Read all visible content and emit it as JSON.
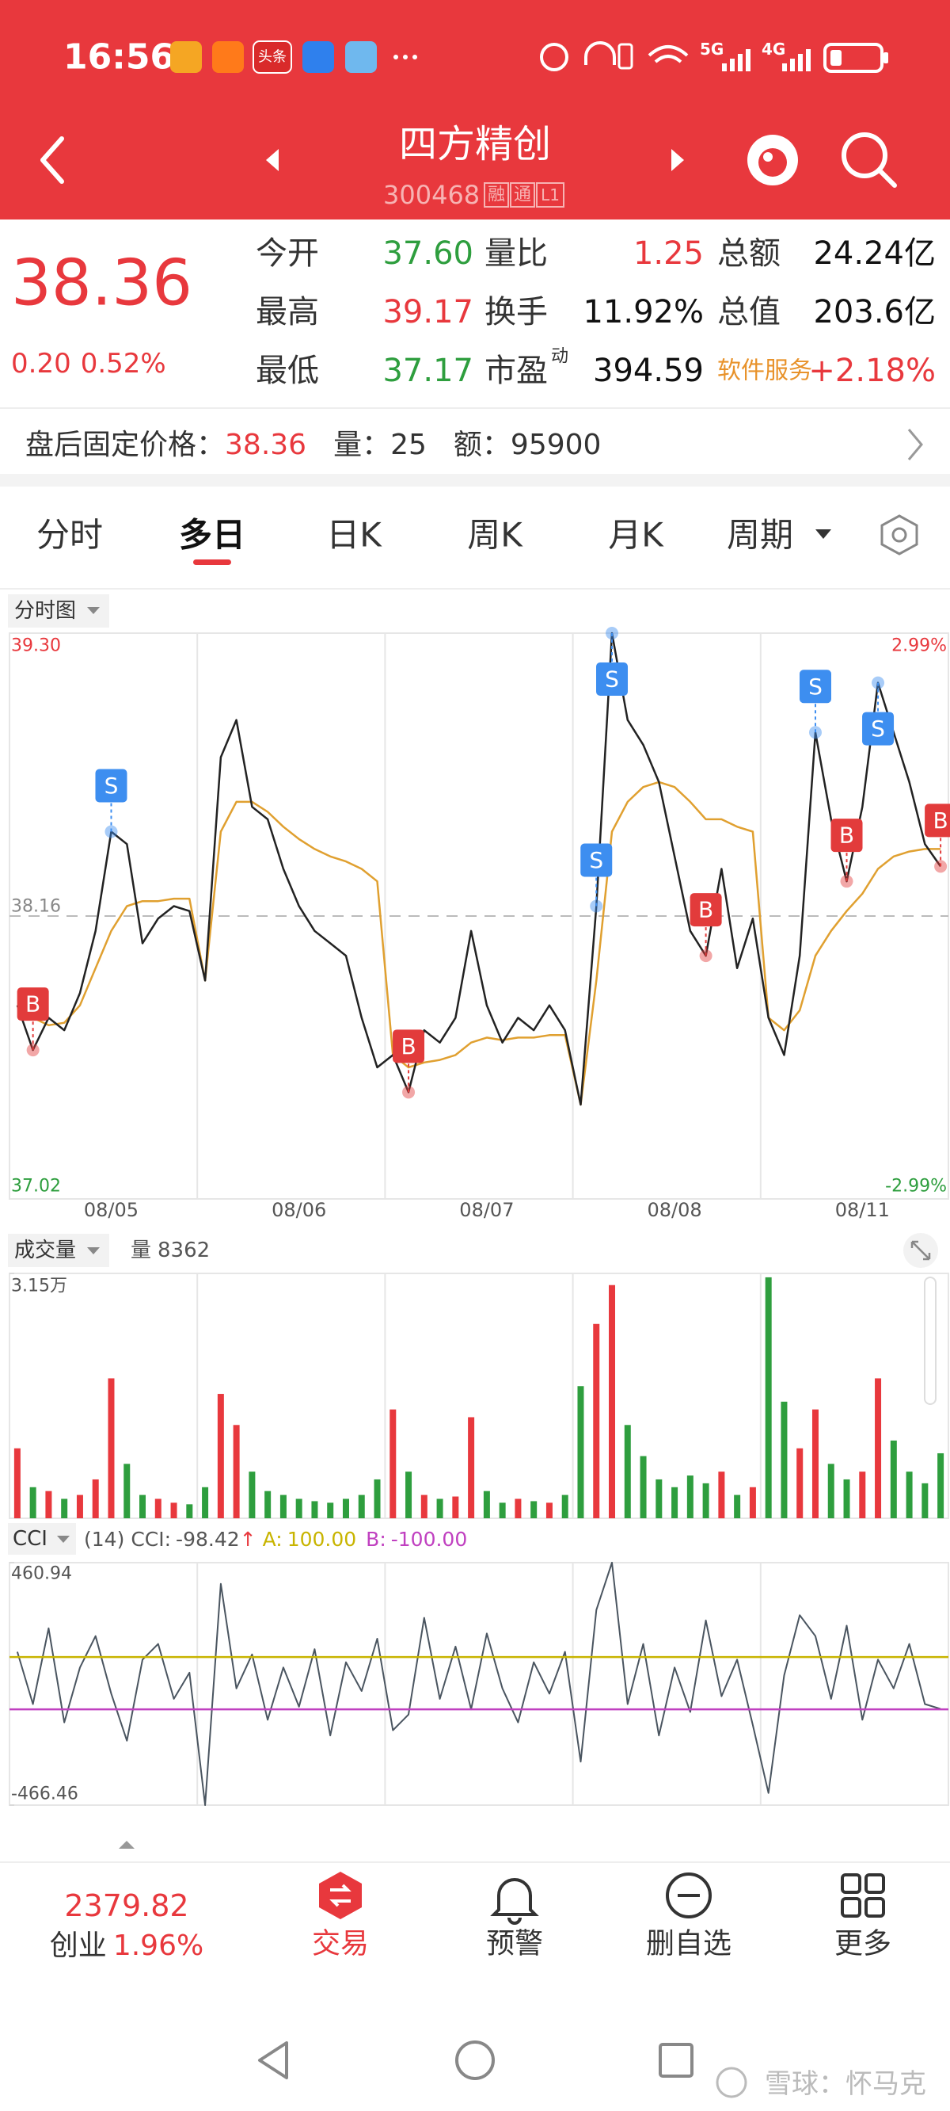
{
  "status_bar": {
    "time": "16:56",
    "app_label": "头条",
    "network": [
      "5G",
      "4G"
    ]
  },
  "header": {
    "title": "四方精创",
    "code": "300468",
    "tags": [
      "融",
      "通",
      "L1"
    ]
  },
  "quote": {
    "price": "38.36",
    "change": "0.20",
    "change_pct": "0.52%",
    "stats": [
      [
        {
          "label": "今开",
          "value": "37.60",
          "color": "#2e9e3e"
        },
        {
          "label": "量比",
          "value": "1.25",
          "color": "#e8383d"
        },
        {
          "label": "总额",
          "value": "24.24亿"
        }
      ],
      [
        {
          "label": "最高",
          "value": "39.17",
          "color": "#e8383d"
        },
        {
          "label": "换手",
          "value": "11.92%"
        },
        {
          "label": "总值",
          "value": "203.6亿"
        }
      ],
      [
        {
          "label": "最低",
          "value": "37.17",
          "color": "#2e9e3e"
        },
        {
          "label": "市盈",
          "sup": "动",
          "value": "394.59"
        },
        {
          "label": "软件服务",
          "label_color": "#e8922a",
          "value": "+2.18%",
          "color": "#e8383d"
        }
      ]
    ]
  },
  "after_hours": {
    "label": "盘后固定价格：",
    "price": "38.36",
    "volume_label": "量：",
    "volume": "25",
    "amount_label": "额：",
    "amount": "95900"
  },
  "tabs": {
    "items": [
      "分时",
      "多日",
      "日K",
      "周K",
      "月K",
      "周期"
    ],
    "active": 1
  },
  "chart_data": [
    {
      "type": "line",
      "title": "分时图",
      "categories": [
        null,
        null,
        null,
        null,
        null,
        null,
        "08/05",
        null,
        null,
        null,
        null,
        null,
        null,
        null,
        null,
        null,
        null,
        null,
        "08/06",
        null,
        null,
        null,
        null,
        null,
        null,
        null,
        null,
        null,
        null,
        null,
        "08/07",
        null,
        null,
        null,
        null,
        null,
        null,
        null,
        null,
        null,
        null,
        null,
        "08/08",
        null,
        null,
        null,
        null,
        null,
        null,
        null,
        null,
        null,
        null,
        null,
        "08/11",
        null,
        null,
        null,
        null,
        null
      ],
      "series": [
        {
          "color": "#222222",
          "values": [
            37.8,
            37.62,
            37.75,
            37.7,
            37.85,
            38.1,
            38.5,
            38.45,
            38.05,
            38.15,
            38.2,
            38.18,
            37.9,
            38.8,
            38.95,
            38.6,
            38.55,
            38.35,
            38.2,
            38.1,
            38.05,
            38.0,
            37.75,
            37.55,
            37.6,
            37.45,
            37.7,
            37.65,
            37.75,
            38.1,
            37.8,
            37.65,
            37.75,
            37.7,
            37.8,
            37.7,
            37.4,
            38.2,
            39.3,
            38.95,
            38.85,
            38.7,
            38.4,
            38.1,
            38.0,
            38.35,
            37.95,
            38.15,
            37.75,
            37.6,
            38.0,
            38.9,
            38.55,
            38.3,
            38.6,
            39.1,
            38.9,
            38.7,
            38.45,
            38.36
          ]
        },
        {
          "color": "#e0a030",
          "values": [
            37.8,
            37.75,
            37.72,
            37.73,
            37.8,
            37.95,
            38.1,
            38.2,
            38.22,
            38.22,
            38.23,
            38.23,
            37.9,
            38.5,
            38.62,
            38.62,
            38.58,
            38.52,
            38.47,
            38.43,
            38.4,
            38.38,
            38.35,
            38.3,
            37.6,
            37.55,
            37.57,
            37.58,
            37.6,
            37.65,
            37.67,
            37.66,
            37.67,
            37.67,
            37.68,
            37.68,
            37.4,
            37.9,
            38.5,
            38.62,
            38.68,
            38.7,
            38.68,
            38.62,
            38.55,
            38.55,
            38.52,
            38.5,
            37.75,
            37.7,
            37.78,
            38.0,
            38.1,
            38.18,
            38.25,
            38.35,
            38.4,
            38.42,
            38.43,
            38.43
          ]
        }
      ],
      "signals": {
        "colors": {
          "B": "#e23b3b",
          "S": "#3d8ef0"
        },
        "labels": [
          null,
          "B",
          null,
          null,
          null,
          null,
          "S",
          null,
          null,
          null,
          null,
          null,
          null,
          null,
          null,
          null,
          null,
          null,
          null,
          null,
          null,
          null,
          null,
          null,
          null,
          "B",
          null,
          null,
          null,
          null,
          null,
          null,
          null,
          null,
          null,
          null,
          null,
          "S",
          "S",
          null,
          null,
          null,
          null,
          null,
          "B",
          null,
          null,
          null,
          null,
          null,
          null,
          "S",
          null,
          "B",
          null,
          "S",
          null,
          null,
          null,
          "B"
        ],
        "values": [
          null,
          37.62,
          null,
          null,
          null,
          null,
          38.5,
          null,
          null,
          null,
          null,
          null,
          null,
          null,
          null,
          null,
          null,
          null,
          null,
          null,
          null,
          null,
          null,
          null,
          null,
          37.45,
          null,
          null,
          null,
          null,
          null,
          null,
          null,
          null,
          null,
          null,
          null,
          38.2,
          39.3,
          null,
          null,
          null,
          null,
          null,
          38.0,
          null,
          null,
          null,
          null,
          null,
          null,
          38.9,
          null,
          38.3,
          null,
          39.1,
          null,
          null,
          null,
          38.36
        ]
      },
      "ylim": [
        37.02,
        39.3
      ],
      "yticks": [
        37.02,
        38.16,
        {
          "value": 39.3,
          "label": "39.30"
        }
      ],
      "y2lim": [
        -2.99,
        2.99
      ],
      "y2ticks": [
        {
          "value": -2.99,
          "label": "-2.99%"
        },
        {
          "value": 2.99,
          "label": "2.99%"
        }
      ]
    },
    {
      "type": "bar",
      "title": "成交量",
      "summary_label": "量",
      "summary_value": "8362",
      "colors": {
        "up": "#e8383d",
        "down": "#2e9e3e"
      },
      "values": [
        9000,
        4000,
        3500,
        2500,
        3000,
        5000,
        18000,
        7000,
        3000,
        2500,
        2000,
        1800,
        4000,
        16000,
        12000,
        6000,
        3500,
        3000,
        2500,
        2200,
        2000,
        2500,
        3000,
        5000,
        14000,
        6000,
        3000,
        2500,
        2800,
        13000,
        3500,
        2000,
        2500,
        2200,
        2000,
        3000,
        17000,
        25000,
        30000,
        12000,
        8000,
        5000,
        4000,
        5500,
        4500,
        6000,
        3000,
        4000,
        31000,
        15000,
        9000,
        14000,
        7000,
        5000,
        6000,
        18000,
        10000,
        6000,
        4500,
        8362
      ],
      "ylim": [
        0,
        31500
      ],
      "yticks": [
        {
          "value": 31500,
          "label": "3.15万"
        }
      ]
    },
    {
      "type": "line",
      "title": "CCI",
      "params": "(14)",
      "reading_label": "CCI:",
      "reading": "-98.42",
      "trend": "↑",
      "series": [
        {
          "color": "#4a5560",
          "values": [
            120,
            -80,
            210,
            -150,
            60,
            180,
            -40,
            -220,
            90,
            150,
            -60,
            40,
            -466.46,
            380,
            -20,
            110,
            -140,
            60,
            -90,
            130,
            -200,
            80,
            -30,
            170,
            -180,
            -120,
            250,
            -60,
            140,
            -100,
            190,
            -20,
            -150,
            80,
            -40,
            120,
            -300,
            280,
            460.94,
            -80,
            150,
            -200,
            60,
            -110,
            240,
            -50,
            90,
            -160,
            -420,
            30,
            260,
            180,
            -60,
            220,
            -140,
            90,
            -20,
            150,
            -80,
            -98.42
          ]
        }
      ],
      "reference_lines": [
        {
          "name": "A:",
          "value": 100,
          "label": "100.00",
          "color": "#c8b400"
        },
        {
          "name": "B:",
          "value": -100,
          "label": "-100.00",
          "color": "#c040c0"
        }
      ],
      "ylim": [
        -466.46,
        460.94
      ],
      "yticks": [
        -466.46,
        460.94
      ]
    }
  ],
  "bottom_nav": {
    "index": {
      "value": "2379.82",
      "name": "创业",
      "change": "1.96%"
    },
    "items": [
      "交易",
      "预警",
      "删自选",
      "更多"
    ]
  },
  "watermark": "雪球：怀马克"
}
